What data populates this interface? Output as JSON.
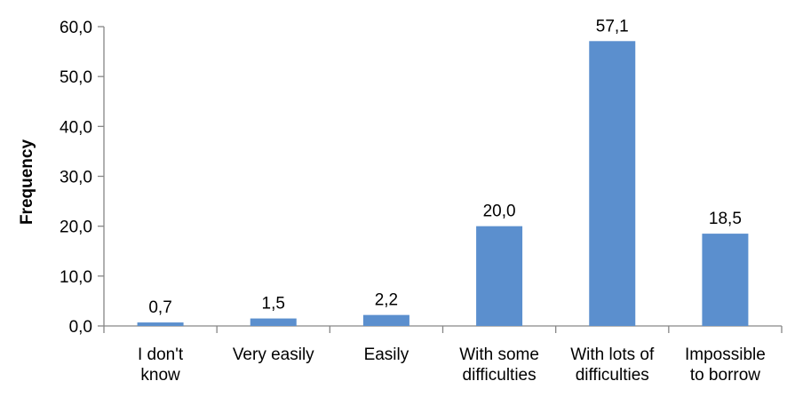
{
  "chart_data": {
    "type": "bar",
    "title": "",
    "xlabel": "",
    "ylabel": "Frequency",
    "categories": [
      [
        "I don't",
        "know"
      ],
      [
        "Very easily"
      ],
      [
        "Easily"
      ],
      [
        "With some",
        "difficulties"
      ],
      [
        "With lots of",
        "difficulties"
      ],
      [
        "Impossible",
        "to borrow"
      ]
    ],
    "values": [
      0.7,
      1.5,
      2.2,
      20.0,
      57.1,
      18.5
    ],
    "value_labels": [
      "0,7",
      "1,5",
      "2,2",
      "20,0",
      "57,1",
      "18,5"
    ],
    "ylim": [
      0,
      60
    ],
    "yticks": [
      0,
      10,
      20,
      30,
      40,
      50,
      60
    ],
    "ytick_labels": [
      "0,0",
      "10,0",
      "20,0",
      "30,0",
      "40,0",
      "50,0",
      "60,0"
    ],
    "grid": false,
    "legend": "none",
    "colors": {
      "bar": "#5b8fce",
      "axis": "#868686"
    }
  }
}
